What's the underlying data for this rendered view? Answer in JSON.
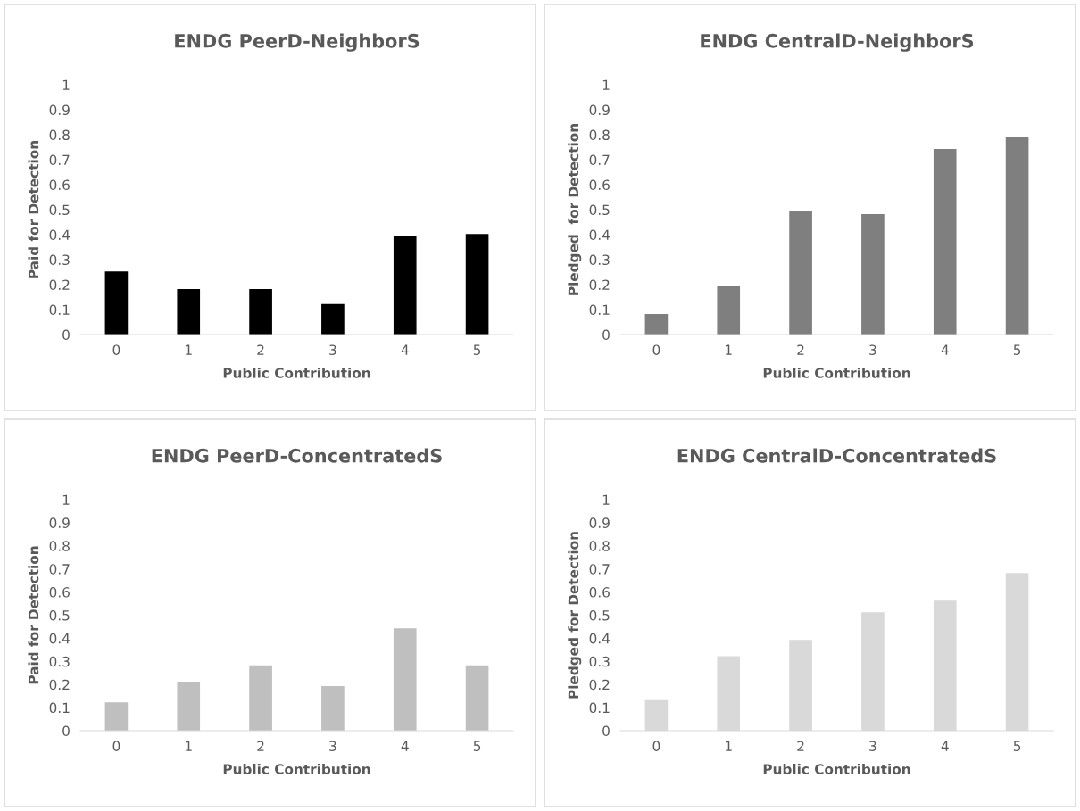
{
  "chart_data": [
    {
      "type": "bar",
      "title": "ENDG PeerD-NeighborS",
      "xlabel": "Public Contribution",
      "ylabel": "Paid for Detection",
      "categories": [
        "0",
        "1",
        "2",
        "3",
        "4",
        "5"
      ],
      "values": [
        0.25,
        0.18,
        0.18,
        0.12,
        0.39,
        0.4
      ],
      "color": "#000000",
      "ylim": [
        0,
        1
      ],
      "yticks": [
        0,
        0.1,
        0.2,
        0.3,
        0.4,
        0.5,
        0.6,
        0.7,
        0.8,
        0.9,
        1
      ]
    },
    {
      "type": "bar",
      "title": "ENDG CentralD-NeighborS",
      "xlabel": "Public Contribution",
      "ylabel": "Pledged  for Detection",
      "categories": [
        "0",
        "1",
        "2",
        "3",
        "4",
        "5"
      ],
      "values": [
        0.08,
        0.19,
        0.49,
        0.48,
        0.74,
        0.79
      ],
      "color": "#7f7f7f",
      "ylim": [
        0,
        1
      ],
      "yticks": [
        0,
        0.1,
        0.2,
        0.3,
        0.4,
        0.5,
        0.6,
        0.7,
        0.8,
        0.9,
        1
      ]
    },
    {
      "type": "bar",
      "title": "ENDG PeerD-ConcentratedS",
      "xlabel": "Public Contribution",
      "ylabel": "Paid for Detection",
      "categories": [
        "0",
        "1",
        "2",
        "3",
        "4",
        "5"
      ],
      "values": [
        0.12,
        0.21,
        0.28,
        0.19,
        0.44,
        0.28
      ],
      "color": "#bfbfbf",
      "ylim": [
        0,
        1
      ],
      "yticks": [
        0,
        0.1,
        0.2,
        0.3,
        0.4,
        0.5,
        0.6,
        0.7,
        0.8,
        0.9,
        1
      ]
    },
    {
      "type": "bar",
      "title": "ENDG CentralD-ConcentratedS",
      "xlabel": "Public Contribution",
      "ylabel": "Pledged for Detection",
      "categories": [
        "0",
        "1",
        "2",
        "3",
        "4",
        "5"
      ],
      "values": [
        0.13,
        0.32,
        0.39,
        0.51,
        0.56,
        0.68
      ],
      "color": "#d9d9d9",
      "ylim": [
        0,
        1
      ],
      "yticks": [
        0,
        0.1,
        0.2,
        0.3,
        0.4,
        0.5,
        0.6,
        0.7,
        0.8,
        0.9,
        1
      ]
    }
  ]
}
